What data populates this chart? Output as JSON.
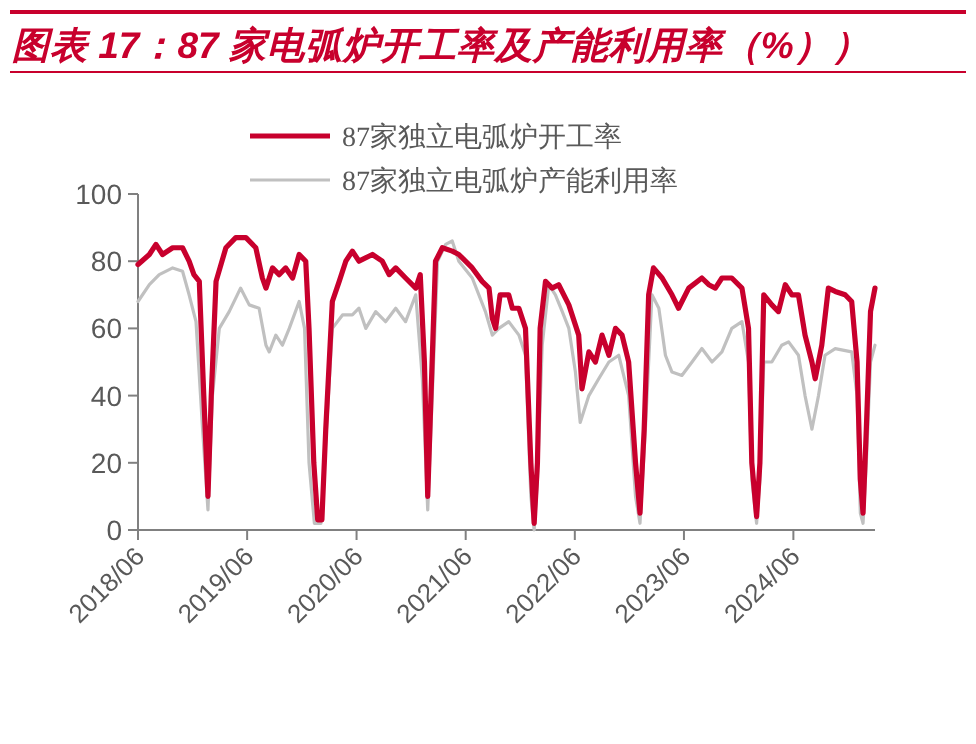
{
  "chart_data": {
    "type": "line",
    "title": "图表 17：87 家电弧炉开工率及产能利用率（%））",
    "legend": "top",
    "xlim": [
      "2018-06-01",
      "2025-03-01"
    ],
    "xticks": [
      {
        "value": "2018-06-01",
        "label": "2018/06"
      },
      {
        "value": "2019-06-01",
        "label": "2019/06"
      },
      {
        "value": "2020-06-01",
        "label": "2020/06"
      },
      {
        "value": "2021-06-01",
        "label": "2021/06"
      },
      {
        "value": "2022-06-01",
        "label": "2022/06"
      },
      {
        "value": "2023-06-01",
        "label": "2023/06"
      },
      {
        "value": "2024-06-01",
        "label": "2024/06"
      }
    ],
    "ylim": [
      0,
      100
    ],
    "yticks": [
      0,
      20,
      40,
      60,
      80,
      100
    ],
    "series": [
      {
        "name": "87家独立电弧炉开工率",
        "color": "#c8002d",
        "x": [
          "2018-06-01",
          "2018-07-09",
          "2018-07-31",
          "2018-08-22",
          "2018-09-25",
          "2018-10-28",
          "2018-11-19",
          "2018-12-05",
          "2018-12-23",
          "2019-01-07",
          "2019-01-21",
          "2019-02-01",
          "2019-02-17",
          "2019-03-22",
          "2019-04-24",
          "2019-05-28",
          "2019-06-30",
          "2019-07-22",
          "2019-08-03",
          "2019-08-25",
          "2019-09-16",
          "2019-10-08",
          "2019-10-31",
          "2019-11-22",
          "2019-12-14",
          "2019-12-25",
          "2020-01-10",
          "2020-01-23",
          "2020-02-06",
          "2020-02-19",
          "2020-03-12",
          "2020-04-04",
          "2020-04-26",
          "2020-05-18",
          "2020-06-09",
          "2020-07-24",
          "2020-08-26",
          "2020-09-18",
          "2020-10-10",
          "2020-11-12",
          "2020-12-16",
          "2020-12-31",
          "2021-01-14",
          "2021-01-25",
          "2021-02-05",
          "2021-02-20",
          "2021-03-15",
          "2021-04-17",
          "2021-05-09",
          "2021-06-23",
          "2021-07-26",
          "2021-08-18",
          "2021-08-29",
          "2021-09-09",
          "2021-09-24",
          "2021-10-23",
          "2021-11-04",
          "2021-11-26",
          "2021-12-18",
          "2022-01-05",
          "2022-01-16",
          "2022-01-27",
          "2022-02-05",
          "2022-02-23",
          "2022-03-17",
          "2022-04-08",
          "2022-05-12",
          "2022-06-14",
          "2022-06-25",
          "2022-07-18",
          "2022-08-09",
          "2022-08-31",
          "2022-09-23",
          "2022-10-15",
          "2022-11-06",
          "2022-11-28",
          "2022-12-21",
          "2023-01-05",
          "2023-01-19",
          "2023-02-03",
          "2023-02-19",
          "2023-03-20",
          "2023-04-22",
          "2023-05-14",
          "2023-06-17",
          "2023-07-31",
          "2023-08-23",
          "2023-09-14",
          "2023-10-06",
          "2023-11-08",
          "2023-12-12",
          "2024-01-03",
          "2024-01-14",
          "2024-01-30",
          "2024-02-10",
          "2024-02-23",
          "2024-03-21",
          "2024-04-12",
          "2024-05-05",
          "2024-05-27",
          "2024-06-18",
          "2024-07-10",
          "2024-08-02",
          "2024-08-13",
          "2024-09-04",
          "2024-09-26",
          "2024-10-19",
          "2024-11-21",
          "2024-12-13",
          "2024-12-31",
          "2025-01-11",
          "2025-01-20",
          "2025-01-31",
          "2025-02-14",
          "2025-03-01"
        ],
        "values": [
          79,
          82,
          85,
          82,
          84,
          84,
          80,
          76,
          74,
          40,
          10,
          40,
          74,
          84,
          87,
          87,
          84,
          75,
          72,
          78,
          76,
          78,
          75,
          82,
          80,
          60,
          20,
          3,
          3,
          30,
          68,
          74,
          80,
          83,
          80,
          82,
          80,
          76,
          78,
          75,
          72,
          76,
          50,
          10,
          40,
          80,
          84,
          83,
          82,
          78,
          74,
          72,
          63,
          60,
          70,
          70,
          66,
          66,
          60,
          20,
          2,
          20,
          60,
          74,
          72,
          73,
          67,
          58,
          42,
          53,
          50,
          58,
          52,
          60,
          58,
          50,
          20,
          5,
          30,
          70,
          78,
          75,
          70,
          66,
          72,
          75,
          73,
          72,
          75,
          75,
          72,
          60,
          20,
          4,
          20,
          70,
          67,
          65,
          73,
          70,
          70,
          58,
          50,
          45,
          55,
          72,
          71,
          70,
          68,
          50,
          15,
          5,
          30,
          65,
          72
        ]
      },
      {
        "name": "87家独立电弧炉产能利用率",
        "color": "#c0c0c0",
        "x": [
          "2018-06-01",
          "2018-07-09",
          "2018-08-11",
          "2018-09-25",
          "2018-10-28",
          "2018-11-19",
          "2018-12-12",
          "2019-01-03",
          "2019-01-21",
          "2019-02-05",
          "2019-02-28",
          "2019-04-02",
          "2019-05-10",
          "2019-06-08",
          "2019-07-11",
          "2019-08-03",
          "2019-08-14",
          "2019-09-05",
          "2019-09-27",
          "2019-10-20",
          "2019-11-22",
          "2019-12-10",
          "2019-12-25",
          "2020-01-12",
          "2020-02-03",
          "2020-03-12",
          "2020-04-15",
          "2020-05-18",
          "2020-06-09",
          "2020-07-02",
          "2020-08-04",
          "2020-09-06",
          "2020-10-10",
          "2020-11-12",
          "2020-12-16",
          "2021-01-07",
          "2021-01-25",
          "2021-02-27",
          "2021-03-26",
          "2021-04-17",
          "2021-05-09",
          "2021-06-23",
          "2021-08-06",
          "2021-08-29",
          "2021-09-20",
          "2021-10-23",
          "2021-11-26",
          "2021-12-18",
          "2022-01-05",
          "2022-01-16",
          "2022-01-27",
          "2022-02-12",
          "2022-03-06",
          "2022-03-28",
          "2022-04-20",
          "2022-05-12",
          "2022-06-03",
          "2022-06-19",
          "2022-07-18",
          "2022-08-20",
          "2022-09-23",
          "2022-10-26",
          "2022-11-28",
          "2022-12-21",
          "2023-01-05",
          "2023-01-23",
          "2023-02-14",
          "2023-03-09",
          "2023-03-31",
          "2023-04-22",
          "2023-05-25",
          "2023-06-28",
          "2023-07-31",
          "2023-09-03",
          "2023-10-06",
          "2023-11-08",
          "2023-12-12",
          "2024-01-03",
          "2024-01-14",
          "2024-01-30",
          "2024-02-10",
          "2024-02-23",
          "2024-03-21",
          "2024-04-23",
          "2024-05-16",
          "2024-06-18",
          "2024-07-10",
          "2024-08-02",
          "2024-08-24",
          "2024-09-15",
          "2024-10-19",
          "2024-12-13",
          "2024-12-31",
          "2025-01-11",
          "2025-01-20",
          "2025-01-31",
          "2025-02-14",
          "2025-03-01"
        ],
        "values": [
          68,
          73,
          76,
          78,
          77,
          70,
          62,
          30,
          6,
          40,
          60,
          65,
          72,
          67,
          66,
          55,
          53,
          58,
          55,
          60,
          68,
          60,
          20,
          2,
          2,
          60,
          64,
          64,
          66,
          60,
          65,
          62,
          66,
          62,
          70,
          45,
          6,
          80,
          85,
          86,
          80,
          75,
          65,
          58,
          60,
          62,
          58,
          52,
          10,
          0,
          15,
          55,
          73,
          70,
          65,
          60,
          47,
          32,
          40,
          45,
          50,
          52,
          40,
          10,
          2,
          30,
          70,
          66,
          52,
          47,
          46,
          50,
          54,
          50,
          53,
          60,
          62,
          50,
          15,
          2,
          15,
          50,
          50,
          55,
          56,
          52,
          40,
          30,
          40,
          52,
          54,
          53,
          40,
          5,
          2,
          20,
          50,
          55
        ]
      }
    ]
  }
}
